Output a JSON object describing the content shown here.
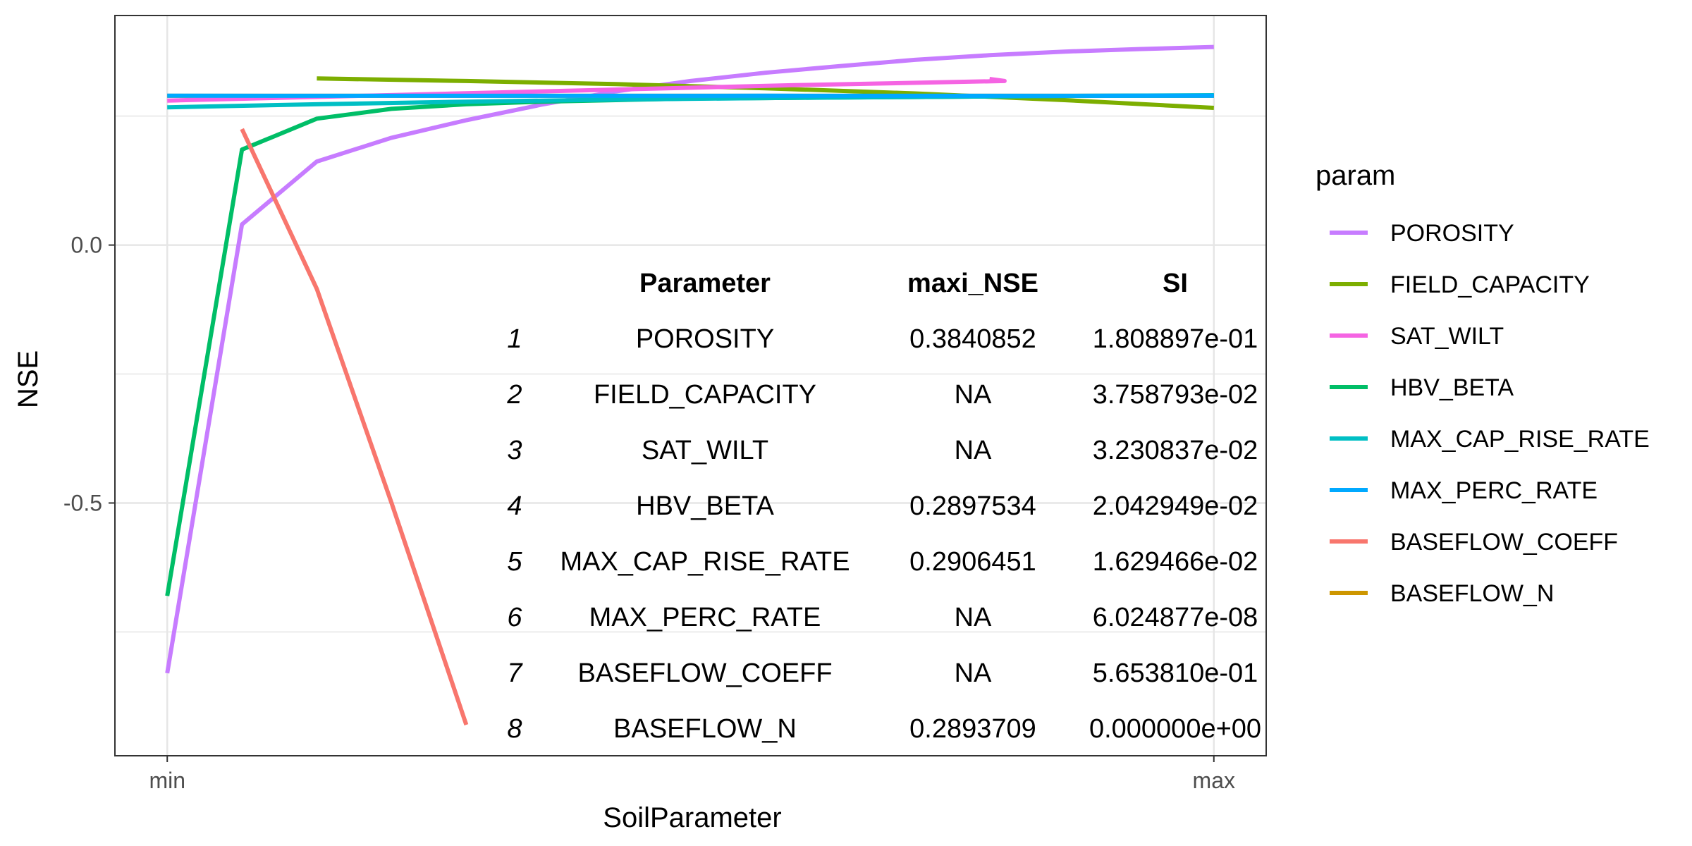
{
  "chart_data": {
    "type": "line",
    "title": "",
    "xlabel": "SoilParameter",
    "ylabel": "NSE",
    "x_ticks": [
      {
        "label": "min",
        "value": 0
      },
      {
        "label": "max",
        "value": 1
      }
    ],
    "y_ticks": [
      {
        "label": "-0.5",
        "value": -0.5
      },
      {
        "label": "0.0",
        "value": 0.0
      }
    ],
    "xlim": [
      -0.05,
      1.05
    ],
    "ylim": [
      -0.99,
      0.445
    ],
    "grid": true,
    "legend": {
      "title": "param",
      "placement": "right"
    },
    "colors": {
      "POROSITY": "#C77CFF",
      "FIELD_CAPACITY": "#7CAE00",
      "SAT_WILT": "#F564E3",
      "HBV_BETA": "#00BE67",
      "MAX_CAP_RISE_RATE": "#00BFC4",
      "MAX_PERC_RATE": "#00A9FF",
      "BASEFLOW_COEFF": "#F8766D",
      "BASEFLOW_N": "#CD9600"
    },
    "series": [
      {
        "name": "POROSITY",
        "x": [
          0,
          0.0714,
          0.1429,
          0.2143,
          0.2857,
          0.3571,
          0.4286,
          0.5,
          0.5714,
          0.6429,
          0.7143,
          0.7857,
          0.8571,
          0.9286,
          1.0
        ],
        "y": [
          -0.83,
          0.04,
          0.162,
          0.208,
          0.242,
          0.272,
          0.298,
          0.318,
          0.334,
          0.347,
          0.359,
          0.368,
          0.375,
          0.38,
          0.384
        ]
      },
      {
        "name": "BASEFLOW_N",
        "x": [
          0,
          0.0714,
          0.1429,
          0.2143,
          0.2857,
          0.3571,
          0.4286,
          0.5,
          0.5714,
          0.6429,
          0.7143,
          0.7857,
          0.8571,
          0.9286,
          1.0
        ],
        "y": [
          0.2894,
          0.2894,
          0.2894,
          0.2894,
          0.2894,
          0.2894,
          0.2894,
          0.2894,
          0.2894,
          0.2894,
          0.2894,
          0.2894,
          0.2894,
          0.2894,
          0.2894
        ]
      },
      {
        "name": "FIELD_CAPACITY",
        "x": [
          0.1429,
          0.2857,
          0.4286,
          0.5714,
          0.7143,
          0.8571,
          1.0
        ],
        "y": [
          0.323,
          0.318,
          0.312,
          0.304,
          0.294,
          0.281,
          0.266
        ]
      },
      {
        "name": "SAT_WILT",
        "x": [
          0,
          0.2,
          0.4,
          0.6,
          0.8,
          0.7857
        ],
        "y": [
          0.28,
          0.29,
          0.3,
          0.31,
          0.318,
          0.322
        ]
      },
      {
        "name": "HBV_BETA",
        "x": [
          0,
          0.0714,
          0.1429,
          0.2143,
          0.2857,
          0.3571,
          0.4286,
          0.5,
          0.5714,
          0.6429,
          0.7143,
          0.7857,
          0.8571,
          0.9286,
          1.0
        ],
        "y": [
          -0.68,
          0.185,
          0.245,
          0.264,
          0.273,
          0.278,
          0.281,
          0.284,
          0.285,
          0.286,
          0.287,
          0.288,
          0.289,
          0.2895,
          0.2898
        ]
      },
      {
        "name": "MAX_CAP_RISE_RATE",
        "x": [
          0,
          0.1429,
          0.2857,
          0.4286,
          0.5714,
          0.7143,
          0.8571,
          1.0
        ],
        "y": [
          0.267,
          0.273,
          0.278,
          0.282,
          0.285,
          0.287,
          0.289,
          0.2906
        ]
      },
      {
        "name": "MAX_PERC_RATE",
        "x": [
          0,
          0.2857,
          0.5714,
          0.8571,
          1.0
        ],
        "y": [
          0.2895,
          0.2894,
          0.2895,
          0.2894,
          0.2894
        ]
      },
      {
        "name": "BASEFLOW_COEFF",
        "x": [
          0.0714,
          0.1429,
          0.2143,
          0.2857
        ],
        "y": [
          0.225,
          -0.085,
          -0.5,
          -0.93
        ]
      }
    ]
  },
  "table": {
    "headers": [
      "Parameter",
      "maxi_NSE",
      "SI"
    ],
    "rows": [
      {
        "idx": "1",
        "param": "POROSITY",
        "nse": "0.3840852",
        "si": "1.808897e-01"
      },
      {
        "idx": "2",
        "param": "FIELD_CAPACITY",
        "nse": "NA",
        "si": "3.758793e-02"
      },
      {
        "idx": "3",
        "param": "SAT_WILT",
        "nse": "NA",
        "si": "3.230837e-02"
      },
      {
        "idx": "4",
        "param": "HBV_BETA",
        "nse": "0.2897534",
        "si": "2.042949e-02"
      },
      {
        "idx": "5",
        "param": "MAX_CAP_RISE_RATE",
        "nse": "0.2906451",
        "si": "1.629466e-02"
      },
      {
        "idx": "6",
        "param": "MAX_PERC_RATE",
        "nse": "NA",
        "si": "6.024877e-08"
      },
      {
        "idx": "7",
        "param": "BASEFLOW_COEFF",
        "nse": "NA",
        "si": "5.653810e-01"
      },
      {
        "idx": "8",
        "param": "BASEFLOW_N",
        "nse": "0.2893709",
        "si": "0.000000e+00"
      }
    ]
  },
  "legend_items": [
    "POROSITY",
    "FIELD_CAPACITY",
    "SAT_WILT",
    "HBV_BETA",
    "MAX_CAP_RISE_RATE",
    "MAX_PERC_RATE",
    "BASEFLOW_COEFF",
    "BASEFLOW_N"
  ]
}
